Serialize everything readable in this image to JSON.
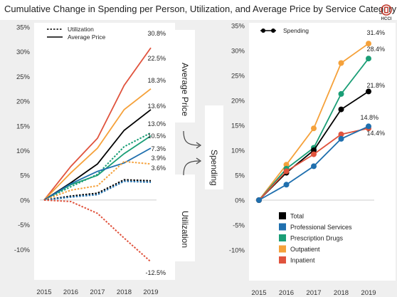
{
  "title": "Cumulative Change in Spending per Person, Utilization, and Average Price by Service Category",
  "logo": {
    "text": "HCCI",
    "icon": "hcci-logo-icon",
    "color": "#c0392b"
  },
  "flow_labels": {
    "average_price": "Average Price",
    "utilization": "Utilization",
    "spending": "Spending"
  },
  "colors": {
    "Total": "#000000",
    "Professional Services": "#1f6fae",
    "Prescription Drugs": "#1a9e76",
    "Outpatient": "#f5a13a",
    "Inpatient": "#e0533d"
  },
  "chart_data": [
    {
      "type": "line",
      "x": [
        2015,
        2016,
        2017,
        2018,
        2019
      ],
      "xticks": [
        "2015",
        "2016",
        "2017",
        "2018",
        "2019"
      ],
      "ylim": [
        -0.15,
        0.35
      ],
      "yticks": [
        "-10%",
        "-5%",
        "0%",
        "5%",
        "10%",
        "15%",
        "20%",
        "25%",
        "30%",
        "35%"
      ],
      "legend": {
        "position": "top-left",
        "entries": [
          "Utilization",
          "Average Price"
        ]
      },
      "series": [
        {
          "category": "Inpatient",
          "metric": "Average Price",
          "values": [
            0,
            0.068,
            0.125,
            0.232,
            0.308
          ],
          "label": "30.8%"
        },
        {
          "category": "Outpatient",
          "metric": "Average Price",
          "values": [
            0,
            0.055,
            0.105,
            0.183,
            0.225
          ],
          "label": "22.5%"
        },
        {
          "category": "Total",
          "metric": "Average Price",
          "values": [
            0,
            0.035,
            0.073,
            0.141,
            0.183
          ],
          "label": "18.3%"
        },
        {
          "category": "Prescription Drugs",
          "metric": "Utilization",
          "values": [
            0,
            0.027,
            0.052,
            0.108,
            0.136
          ],
          "label": "13.6%"
        },
        {
          "category": "Prescription Drugs",
          "metric": "Average Price",
          "values": [
            0,
            0.031,
            0.05,
            0.094,
            0.13
          ],
          "label": "13.0%"
        },
        {
          "category": "Professional Services",
          "metric": "Average Price",
          "values": [
            0,
            0.033,
            0.058,
            0.075,
            0.105
          ],
          "label": "10.5%"
        },
        {
          "category": "Outpatient",
          "metric": "Utilization",
          "values": [
            0,
            0.02,
            0.029,
            0.078,
            0.073
          ],
          "label": "7.3%"
        },
        {
          "category": "Total",
          "metric": "Utilization",
          "values": [
            0,
            0.008,
            0.014,
            0.041,
            0.039
          ],
          "label": "3.9%"
        },
        {
          "category": "Professional Services",
          "metric": "Utilization",
          "values": [
            0,
            0.006,
            0.011,
            0.038,
            0.036
          ],
          "label": "3.6%"
        },
        {
          "category": "Inpatient",
          "metric": "Utilization",
          "values": [
            0,
            -0.003,
            -0.027,
            -0.077,
            -0.125
          ],
          "label": "-12.5%"
        }
      ]
    },
    {
      "type": "line",
      "x": [
        2015,
        2016,
        2017,
        2018,
        2019
      ],
      "xticks": [
        "2015",
        "2016",
        "2017",
        "2018",
        "2019"
      ],
      "ylim": [
        -0.15,
        0.35
      ],
      "yticks": [
        "-10%",
        "-5%",
        "0%",
        "5%",
        "10%",
        "15%",
        "20%",
        "25%",
        "30%",
        "35%"
      ],
      "legend": {
        "position": "top-left",
        "entries": [
          "Spending"
        ]
      },
      "category_legend": {
        "position": "bottom-left",
        "entries": [
          "Total",
          "Professional Services",
          "Prescription Drugs",
          "Outpatient",
          "Inpatient"
        ]
      },
      "series": [
        {
          "category": "Outpatient",
          "metric": "Spending",
          "values": [
            0,
            0.071,
            0.144,
            0.275,
            0.314
          ],
          "label": "31.4%"
        },
        {
          "category": "Prescription Drugs",
          "metric": "Spending",
          "values": [
            0,
            0.063,
            0.105,
            0.213,
            0.284
          ],
          "label": "28.4%"
        },
        {
          "category": "Total",
          "metric": "Spending",
          "values": [
            0,
            0.055,
            0.1,
            0.182,
            0.218
          ],
          "label": "21.8%"
        },
        {
          "category": "Inpatient",
          "metric": "Spending",
          "values": [
            0,
            0.058,
            0.092,
            0.132,
            0.144
          ],
          "label": "14.4%"
        },
        {
          "category": "Professional Services",
          "metric": "Spending",
          "values": [
            0,
            0.031,
            0.068,
            0.123,
            0.148
          ],
          "label": "14.8%"
        }
      ]
    }
  ]
}
